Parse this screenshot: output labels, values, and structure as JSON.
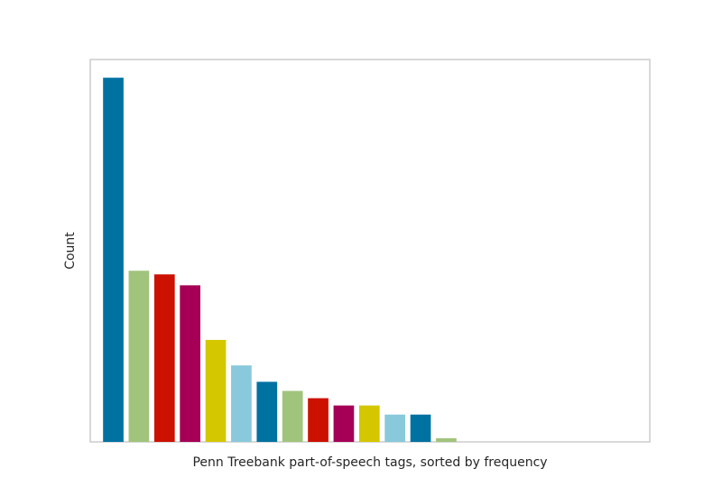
{
  "chart_data": {
    "type": "bar",
    "xlabel": "Penn Treebank part-of-speech tags, sorted by frequency",
    "ylabel": "Count",
    "values": [
      100,
      47,
      46,
      43,
      28,
      21,
      16.5,
      14,
      12,
      10,
      10,
      7.5,
      7.5,
      1,
      0,
      0,
      0,
      0,
      0,
      0,
      0
    ],
    "ylim": [
      0,
      105
    ],
    "grid": false,
    "x_ticks_shown": false,
    "y_ticks_shown": false,
    "colors": [
      "#0072A2",
      "#A1C47C",
      "#CC1100",
      "#A50056",
      "#D4C700",
      "#88C9DB"
    ]
  }
}
